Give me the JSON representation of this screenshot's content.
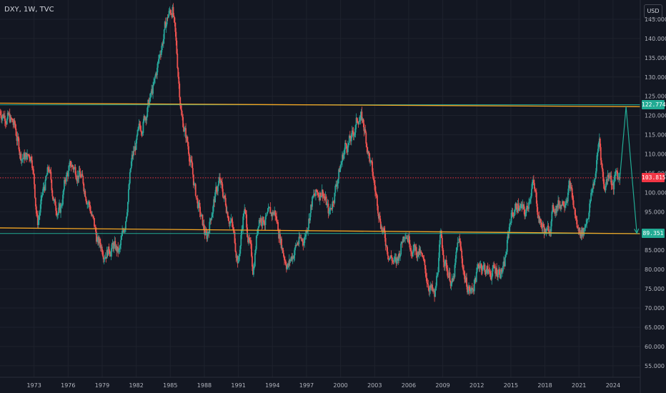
{
  "header": {
    "symbol": "DXY",
    "interval": "1W",
    "source": "TVC",
    "currency": "USD"
  },
  "colors": {
    "background": "#131722",
    "up_candle": "#26a69a",
    "down_candle": "#ef5350",
    "trend_line": "#f5a623",
    "target_line": "#22ab94",
    "current_price_line": "#f23645"
  },
  "chart_data": {
    "type": "candlestick",
    "title": "",
    "xlabel": "",
    "ylabel": "",
    "x_ticks": [
      "1973",
      "1976",
      "1979",
      "1982",
      "1985",
      "1988",
      "1991",
      "1994",
      "1997",
      "2000",
      "2003",
      "2006",
      "2009",
      "2012",
      "2015",
      "2018",
      "2021",
      "2024"
    ],
    "y_ticks": [
      "55.000",
      "60.000",
      "65.000",
      "70.000",
      "75.000",
      "80.000",
      "85.000",
      "90.000",
      "95.000",
      "100.000",
      "105.000",
      "110.000",
      "115.000",
      "120.000",
      "125.000",
      "130.000",
      "135.000",
      "140.000",
      "145.000"
    ],
    "xlim": [
      1970,
      2026.4
    ],
    "ylim": [
      52,
      150
    ],
    "price_path": [
      {
        "x": 1970.0,
        "y": 121
      },
      {
        "x": 1970.6,
        "y": 120
      },
      {
        "x": 1971.3,
        "y": 117
      },
      {
        "x": 1971.8,
        "y": 110
      },
      {
        "x": 1972.2,
        "y": 109
      },
      {
        "x": 1972.8,
        "y": 110
      },
      {
        "x": 1973.0,
        "y": 103
      },
      {
        "x": 1973.3,
        "y": 92
      },
      {
        "x": 1973.8,
        "y": 100
      },
      {
        "x": 1974.3,
        "y": 106
      },
      {
        "x": 1974.8,
        "y": 97
      },
      {
        "x": 1975.3,
        "y": 95
      },
      {
        "x": 1975.8,
        "y": 104
      },
      {
        "x": 1976.3,
        "y": 107
      },
      {
        "x": 1977.0,
        "y": 105
      },
      {
        "x": 1977.8,
        "y": 98
      },
      {
        "x": 1978.6,
        "y": 87
      },
      {
        "x": 1979.3,
        "y": 85
      },
      {
        "x": 1980.0,
        "y": 86
      },
      {
        "x": 1980.5,
        "y": 84
      },
      {
        "x": 1981.0,
        "y": 92
      },
      {
        "x": 1981.6,
        "y": 108
      },
      {
        "x": 1982.3,
        "y": 116
      },
      {
        "x": 1983.0,
        "y": 122
      },
      {
        "x": 1983.6,
        "y": 128
      },
      {
        "x": 1984.2,
        "y": 138
      },
      {
        "x": 1984.8,
        "y": 146
      },
      {
        "x": 1985.2,
        "y": 148
      },
      {
        "x": 1985.5,
        "y": 138
      },
      {
        "x": 1986.0,
        "y": 120
      },
      {
        "x": 1986.7,
        "y": 110
      },
      {
        "x": 1987.2,
        "y": 100
      },
      {
        "x": 1987.8,
        "y": 92
      },
      {
        "x": 1988.2,
        "y": 88
      },
      {
        "x": 1988.7,
        "y": 96
      },
      {
        "x": 1989.3,
        "y": 103
      },
      {
        "x": 1989.8,
        "y": 98
      },
      {
        "x": 1990.4,
        "y": 92
      },
      {
        "x": 1991.0,
        "y": 82
      },
      {
        "x": 1991.5,
        "y": 96
      },
      {
        "x": 1992.3,
        "y": 80
      },
      {
        "x": 1992.8,
        "y": 94
      },
      {
        "x": 1993.5,
        "y": 93
      },
      {
        "x": 1994.2,
        "y": 95
      },
      {
        "x": 1995.0,
        "y": 84
      },
      {
        "x": 1995.4,
        "y": 81
      },
      {
        "x": 1996.2,
        "y": 87
      },
      {
        "x": 1996.8,
        "y": 88
      },
      {
        "x": 1997.5,
        "y": 98
      },
      {
        "x": 1998.4,
        "y": 101
      },
      {
        "x": 1999.0,
        "y": 94
      },
      {
        "x": 1999.6,
        "y": 102
      },
      {
        "x": 2000.4,
        "y": 112
      },
      {
        "x": 2001.0,
        "y": 114
      },
      {
        "x": 2001.6,
        "y": 120
      },
      {
        "x": 2002.0,
        "y": 118
      },
      {
        "x": 2002.6,
        "y": 108
      },
      {
        "x": 2003.2,
        "y": 98
      },
      {
        "x": 2003.8,
        "y": 89
      },
      {
        "x": 2004.3,
        "y": 84
      },
      {
        "x": 2004.9,
        "y": 81
      },
      {
        "x": 2005.7,
        "y": 91
      },
      {
        "x": 2006.3,
        "y": 86
      },
      {
        "x": 2007.0,
        "y": 84
      },
      {
        "x": 2007.6,
        "y": 78
      },
      {
        "x": 2008.3,
        "y": 72
      },
      {
        "x": 2008.8,
        "y": 88
      },
      {
        "x": 2009.3,
        "y": 81
      },
      {
        "x": 2009.9,
        "y": 76
      },
      {
        "x": 2010.4,
        "y": 88
      },
      {
        "x": 2011.0,
        "y": 77
      },
      {
        "x": 2011.5,
        "y": 74
      },
      {
        "x": 2012.3,
        "y": 82
      },
      {
        "x": 2013.0,
        "y": 79
      },
      {
        "x": 2013.8,
        "y": 80
      },
      {
        "x": 2014.4,
        "y": 80
      },
      {
        "x": 2015.0,
        "y": 94
      },
      {
        "x": 2015.6,
        "y": 97
      },
      {
        "x": 2016.3,
        "y": 94
      },
      {
        "x": 2016.9,
        "y": 103
      },
      {
        "x": 2017.6,
        "y": 92
      },
      {
        "x": 2018.2,
        "y": 89
      },
      {
        "x": 2018.8,
        "y": 96
      },
      {
        "x": 2019.6,
        "y": 98
      },
      {
        "x": 2020.2,
        "y": 102
      },
      {
        "x": 2020.9,
        "y": 90
      },
      {
        "x": 2021.4,
        "y": 90
      },
      {
        "x": 2021.9,
        "y": 96
      },
      {
        "x": 2022.4,
        "y": 104
      },
      {
        "x": 2022.8,
        "y": 114
      },
      {
        "x": 2023.2,
        "y": 101
      },
      {
        "x": 2023.7,
        "y": 106
      },
      {
        "x": 2024.0,
        "y": 101
      },
      {
        "x": 2024.3,
        "y": 105
      },
      {
        "x": 2024.6,
        "y": 103.8
      }
    ],
    "upper_trendline": [
      {
        "x": 1970.0,
        "y": 123.2
      },
      {
        "x": 2026.4,
        "y": 122.3
      }
    ],
    "lower_trendline": [
      {
        "x": 1970.0,
        "y": 90.8
      },
      {
        "x": 2026.4,
        "y": 89.3
      }
    ],
    "upper_level": 122.774,
    "lower_level": 89.351,
    "current_price": 103.815,
    "projection": [
      {
        "x": 2024.6,
        "y": 103.8
      },
      {
        "x": 2025.15,
        "y": 122.3
      },
      {
        "x": 2026.1,
        "y": 89.4
      }
    ],
    "badges": {
      "upper": "122.774",
      "current": "103.815",
      "lower": "89.351"
    }
  }
}
